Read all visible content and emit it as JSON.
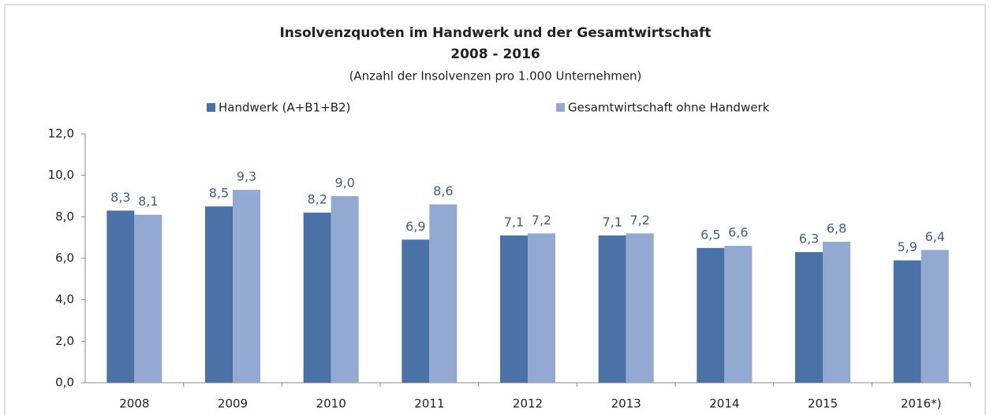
{
  "chart_data": {
    "type": "bar",
    "title": "Insolvenzquoten im Handwerk und der Gesamtwirtschaft",
    "subtitle": "2008 - 2016",
    "note": "(Anzahl der Insolvenzen pro 1.000 Unternehmen)",
    "categories": [
      "2008",
      "2009",
      "2010",
      "2011",
      "2012",
      "2013",
      "2014",
      "2015",
      "2016*)"
    ],
    "series": [
      {
        "name": "Handwerk (A+B1+B2)",
        "color": "#4a72a6",
        "values": [
          8.3,
          8.5,
          8.2,
          6.9,
          7.1,
          7.1,
          6.5,
          6.3,
          5.9
        ],
        "value_labels": [
          "8,3",
          "8,5",
          "8,2",
          "6,9",
          "7,1",
          "7,1",
          "6,5",
          "6,3",
          "5,9"
        ]
      },
      {
        "name": "Gesamtwirtschaft ohne Handwerk",
        "color": "#93a9d1",
        "values": [
          8.1,
          9.3,
          9.0,
          8.6,
          7.2,
          7.2,
          6.6,
          6.8,
          6.4
        ],
        "value_labels": [
          "8,1",
          "9,3",
          "9,0",
          "8,6",
          "7,2",
          "7,2",
          "6,6",
          "6,8",
          "6,4"
        ]
      }
    ],
    "ylim": [
      0,
      12
    ],
    "yticks": [
      {
        "value": 0,
        "label": "0,0"
      },
      {
        "value": 2,
        "label": "2,0"
      },
      {
        "value": 4,
        "label": "4,0"
      },
      {
        "value": 6,
        "label": "6,0"
      },
      {
        "value": 8,
        "label": "8,0"
      },
      {
        "value": 10,
        "label": "10,0"
      },
      {
        "value": 12,
        "label": "12,0"
      }
    ],
    "grid": false
  }
}
